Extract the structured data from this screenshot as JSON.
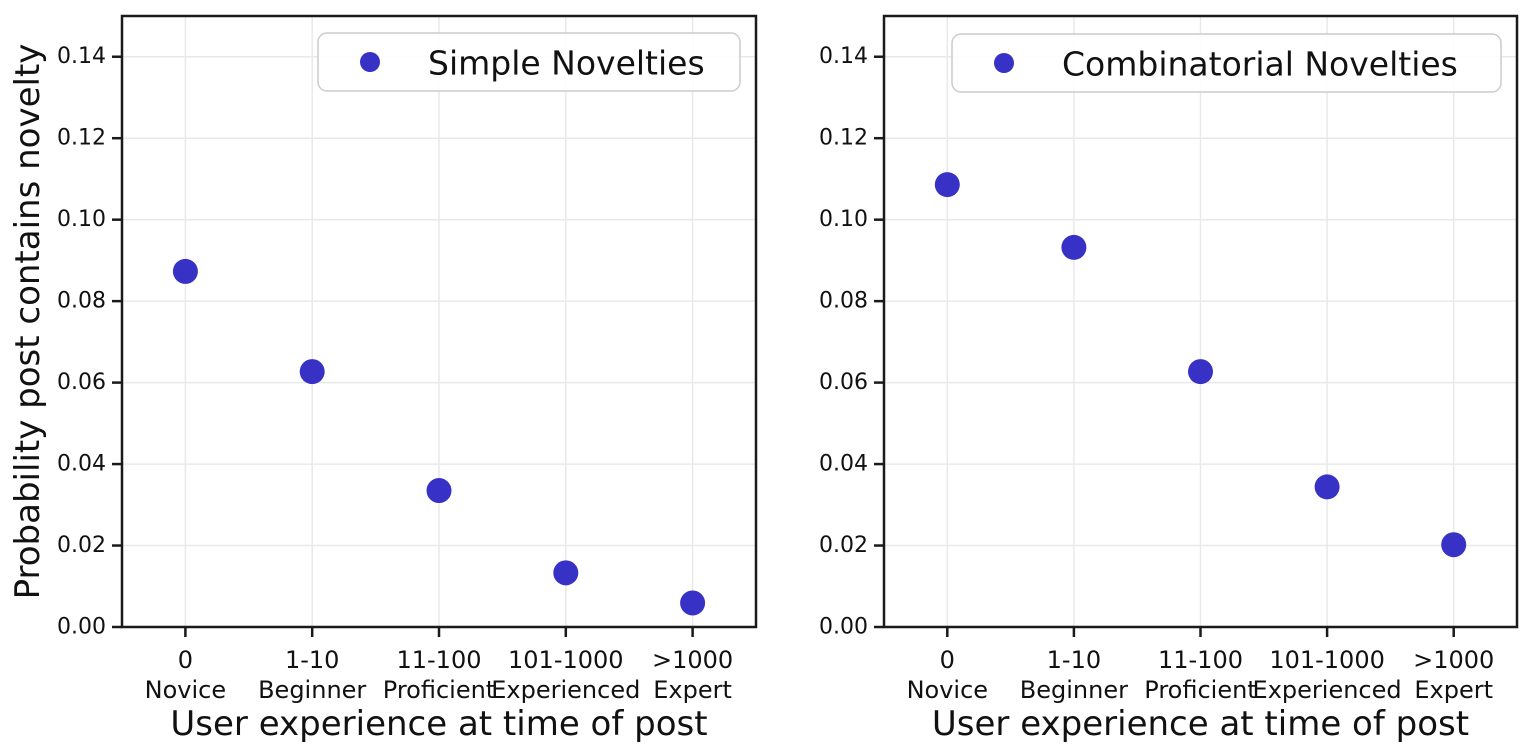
{
  "figure": {
    "background": "#ffffff",
    "marker_color": "#3731c6",
    "grid_color": "#e9e9e9",
    "spine_color": "#1a1a1a",
    "text_color": "#111111",
    "legend_border_color": "#cccccc"
  },
  "chart_data": [
    {
      "type": "scatter",
      "panel": "left",
      "legend": "Simple Novelties",
      "legend_position": "upper right",
      "xlabel": "User experience at time of post",
      "ylabel": "Probability post contains novelty",
      "categories": [
        "0",
        "1-10",
        "11-100",
        "101-1000",
        ">1000"
      ],
      "category_names": [
        "Novice",
        "Beginner",
        "Proficient",
        "Experienced",
        "Expert"
      ],
      "values": [
        0.0873,
        0.0627,
        0.0335,
        0.0133,
        0.0059
      ],
      "ylim": [
        0,
        0.15
      ],
      "yticks": [
        0.0,
        0.02,
        0.04,
        0.06,
        0.08,
        0.1,
        0.12,
        0.14
      ],
      "grid": true
    },
    {
      "type": "scatter",
      "panel": "right",
      "legend": "Combinatorial Novelties",
      "legend_position": "upper right",
      "xlabel": "User experience at time of post",
      "ylabel": "",
      "categories": [
        "0",
        "1-10",
        "11-100",
        "101-1000",
        ">1000"
      ],
      "category_names": [
        "Novice",
        "Beginner",
        "Proficient",
        "Experienced",
        "Expert"
      ],
      "values": [
        0.1086,
        0.0932,
        0.0627,
        0.0344,
        0.0202
      ],
      "ylim": [
        0,
        0.15
      ],
      "yticks": [
        0.0,
        0.02,
        0.04,
        0.06,
        0.08,
        0.1,
        0.12,
        0.14
      ],
      "grid": true
    }
  ]
}
